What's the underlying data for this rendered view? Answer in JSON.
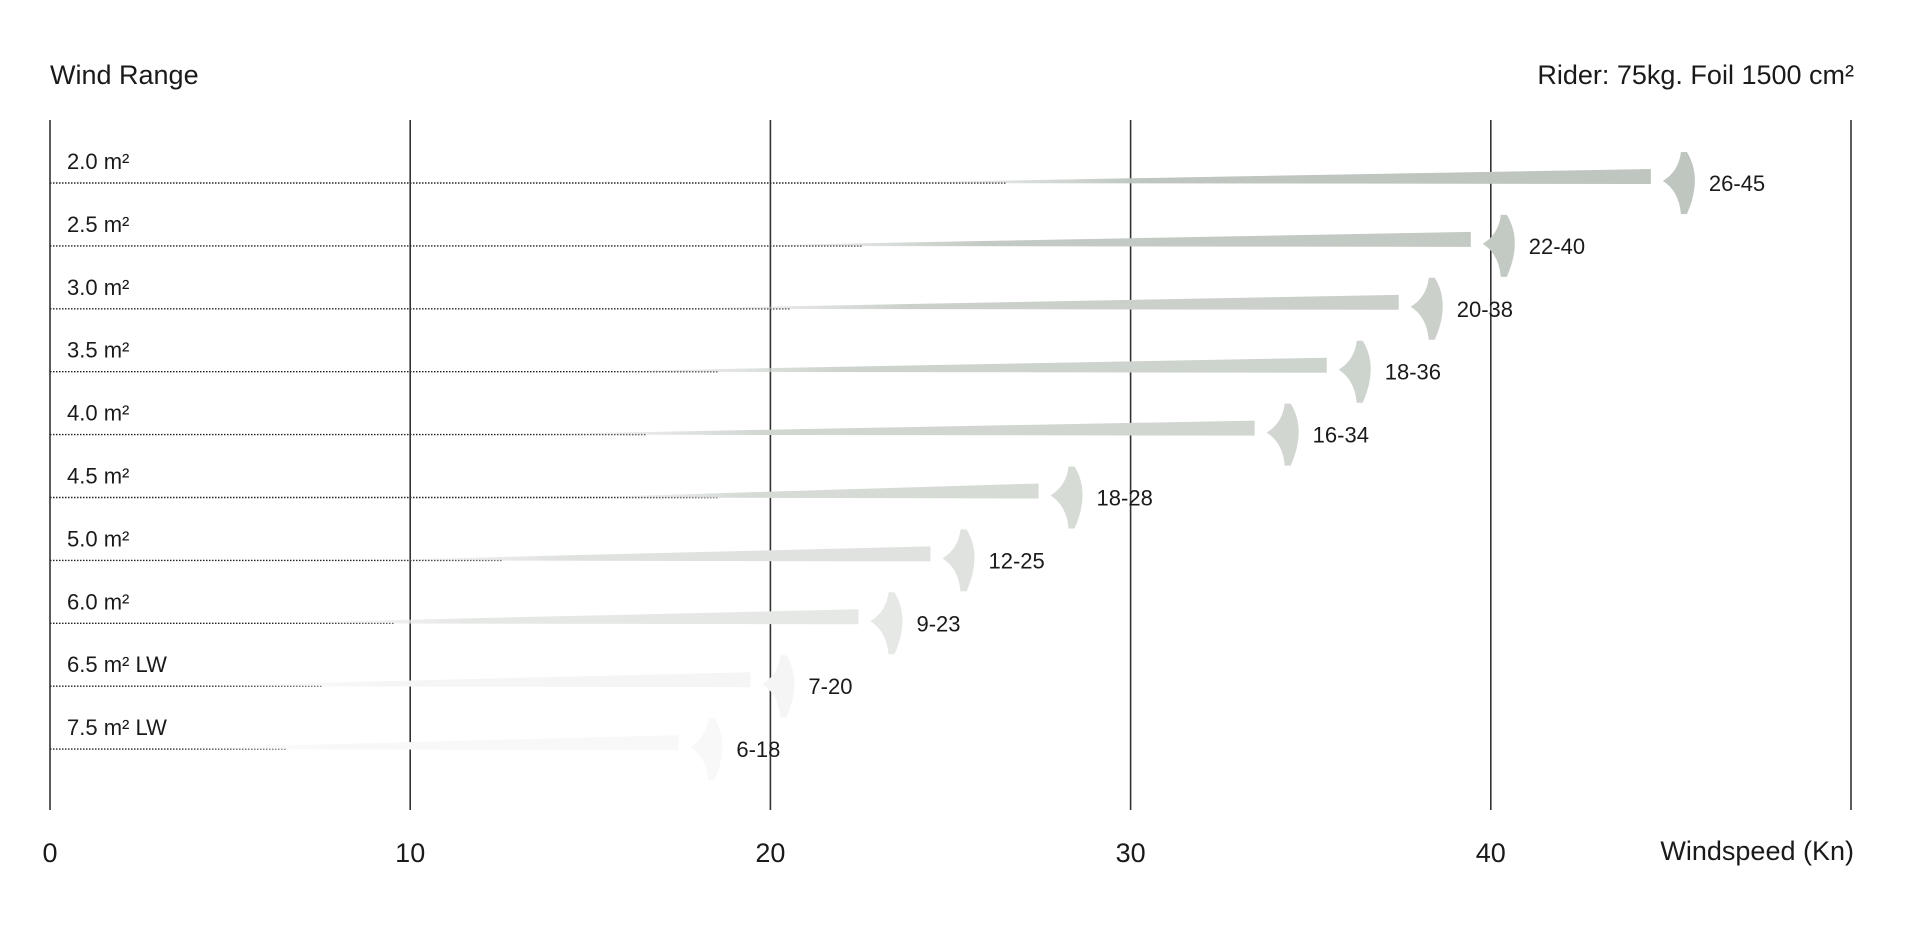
{
  "chart_data": {
    "type": "bar",
    "title": "Wind Range",
    "subtitle": "Rider: 75kg. Foil 1500 cm²",
    "xlabel": "Windspeed (Kn)",
    "ylabel": "",
    "xlim": [
      0,
      50
    ],
    "x_ticks": [
      "0",
      "10",
      "20",
      "30",
      "40"
    ],
    "grid": true,
    "categories": [
      "2.0 m²",
      "2.5 m²",
      "3.0 m²",
      "3.5 m²",
      "4.0 m²",
      "4.5 m²",
      "5.0 m²",
      "6.0 m²",
      "6.5 m² LW",
      "7.5 m² LW"
    ],
    "series": [
      {
        "values": [
          {
            "min": 26,
            "max": 45,
            "label": "26-45"
          },
          {
            "min": 22,
            "max": 40,
            "label": "22-40"
          },
          {
            "min": 20,
            "max": 38,
            "label": "20-38"
          },
          {
            "min": 18,
            "max": 36,
            "label": "18-36"
          },
          {
            "min": 16,
            "max": 34,
            "label": "16-34"
          },
          {
            "min": 18,
            "max": 28,
            "label": "18-28"
          },
          {
            "min": 12,
            "max": 25,
            "label": "12-25"
          },
          {
            "min": 9,
            "max": 23,
            "label": "9-23"
          },
          {
            "min": 7,
            "max": 20,
            "label": "7-20"
          },
          {
            "min": 6,
            "max": 18,
            "label": "6-18"
          }
        ]
      }
    ],
    "colors": [
      "#bfc6c0",
      "#c3c9c3",
      "#cbd0cb",
      "#cdd3cd",
      "#d1d6d1",
      "#d6dbd6",
      "#dfe2df",
      "#e6e8e6",
      "#f4f5f4",
      "#f7f8f7"
    ]
  }
}
